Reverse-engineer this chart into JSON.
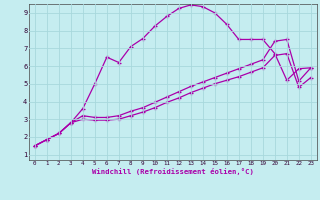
{
  "title": "",
  "xlabel": "Windchill (Refroidissement éolien,°C)",
  "ylabel": "",
  "xlim": [
    -0.5,
    23.5
  ],
  "ylim": [
    0.7,
    9.5
  ],
  "xticks": [
    0,
    1,
    2,
    3,
    4,
    5,
    6,
    7,
    8,
    9,
    10,
    11,
    12,
    13,
    14,
    15,
    16,
    17,
    18,
    19,
    20,
    21,
    22,
    23
  ],
  "yticks": [
    1,
    2,
    3,
    4,
    5,
    6,
    7,
    8,
    9
  ],
  "background_color": "#c5edf0",
  "grid_color": "#a8d8dc",
  "line_color": "#aa00aa",
  "line1_x": [
    0,
    1,
    2,
    3,
    4,
    5,
    6,
    7,
    8,
    9,
    10,
    11,
    12,
    13,
    14,
    15,
    16,
    17,
    18,
    19,
    20,
    21,
    22,
    23
  ],
  "line1_y": [
    1.5,
    1.85,
    2.2,
    2.8,
    3.6,
    5.0,
    6.5,
    6.2,
    7.1,
    7.55,
    8.25,
    8.8,
    9.25,
    9.45,
    9.35,
    9.0,
    8.35,
    7.5,
    7.5,
    7.5,
    6.7,
    5.2,
    5.85,
    5.9
  ],
  "line2_x": [
    0,
    1,
    2,
    3,
    4,
    5,
    6,
    7,
    8,
    9,
    10,
    11,
    12,
    13,
    14,
    15,
    16,
    17,
    18,
    19,
    20,
    21,
    22,
    23
  ],
  "line2_y": [
    1.5,
    1.85,
    2.2,
    2.8,
    3.2,
    3.1,
    3.1,
    3.2,
    3.45,
    3.65,
    3.95,
    4.25,
    4.55,
    4.85,
    5.1,
    5.35,
    5.6,
    5.85,
    6.1,
    6.35,
    7.4,
    7.5,
    5.15,
    5.9
  ],
  "line3_x": [
    0,
    1,
    2,
    3,
    4,
    5,
    6,
    7,
    8,
    9,
    10,
    11,
    12,
    13,
    14,
    15,
    16,
    17,
    18,
    19,
    20,
    21,
    22,
    23
  ],
  "line3_y": [
    1.5,
    1.85,
    2.2,
    2.8,
    3.0,
    2.95,
    2.95,
    3.0,
    3.2,
    3.4,
    3.65,
    3.95,
    4.2,
    4.5,
    4.75,
    5.0,
    5.2,
    5.4,
    5.65,
    5.9,
    6.6,
    6.7,
    4.8,
    5.35
  ]
}
